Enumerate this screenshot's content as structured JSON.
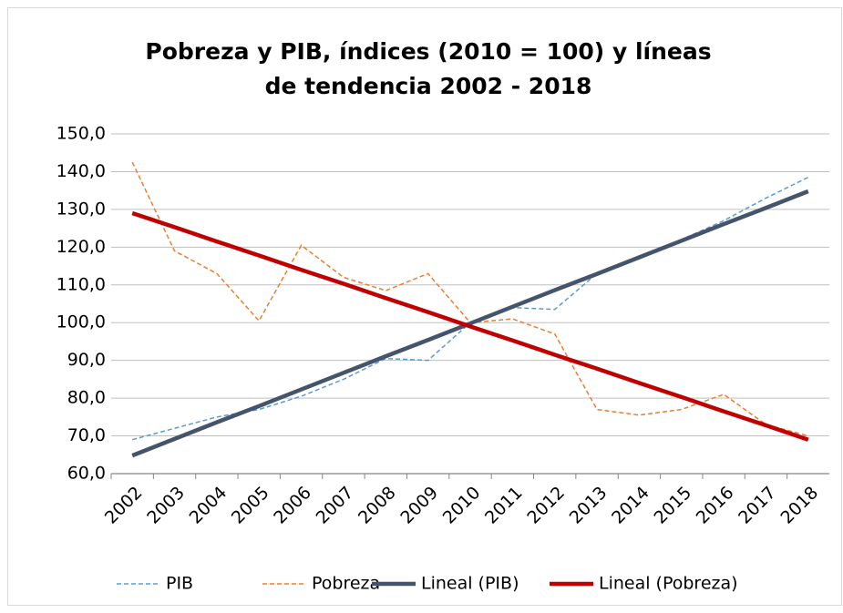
{
  "chart_data": {
    "type": "line",
    "title": "Pobreza y PIB, índices (2010 = 100) y líneas de tendencia 2002 - 2018",
    "categories": [
      "2002",
      "2003",
      "2004",
      "2005",
      "2006",
      "2007",
      "2008",
      "2009",
      "2010",
      "2011",
      "2012",
      "2013",
      "2014",
      "2015",
      "2016",
      "2017",
      "2018"
    ],
    "series": [
      {
        "name": "PIB",
        "color": "#5b9bd5",
        "dashed": true,
        "line_width": 1.5,
        "values": [
          69,
          72,
          75,
          77,
          80.5,
          85,
          90.5,
          90,
          100,
          104,
          103.5,
          113,
          117,
          122,
          127,
          133,
          138.5
        ]
      },
      {
        "name": "Pobreza",
        "color": "#ed7d31",
        "dashed": true,
        "line_width": 1.5,
        "values": [
          142.5,
          119,
          113,
          100.5,
          120.5,
          112,
          108.5,
          113,
          100,
          101,
          97,
          77,
          75.5,
          77,
          81,
          73,
          70
        ]
      },
      {
        "name": "Lineal (PIB)",
        "color": "#44546a",
        "dashed": false,
        "line_width": 4.5,
        "values": [
          64.8,
          69.2,
          73.6,
          77.9,
          82.3,
          86.7,
          91.1,
          95.4,
          99.8,
          104.2,
          108.6,
          112.9,
          117.3,
          121.7,
          126.1,
          130.4,
          134.8
        ]
      },
      {
        "name": "Lineal (Pobreza)",
        "color": "#c00000",
        "dashed": false,
        "line_width": 4.5,
        "values": [
          129,
          125.3,
          121.5,
          117.8,
          114,
          110.3,
          106.5,
          102.8,
          99,
          95.3,
          91.5,
          87.8,
          84,
          80.3,
          76.5,
          72.8,
          69
        ]
      }
    ],
    "ylim": [
      60,
      150
    ],
    "yticks": [
      {
        "value": 60,
        "label": "60,0"
      },
      {
        "value": 70,
        "label": "70,0"
      },
      {
        "value": 80,
        "label": "80,0"
      },
      {
        "value": 90,
        "label": "90,0"
      },
      {
        "value": 100,
        "label": "100,0"
      },
      {
        "value": 110,
        "label": "110,0"
      },
      {
        "value": 120,
        "label": "120,0"
      },
      {
        "value": 130,
        "label": "130,0"
      },
      {
        "value": 140,
        "label": "140,0"
      },
      {
        "value": 150,
        "label": "150,0"
      }
    ],
    "grid": true,
    "legend": "bottom"
  }
}
